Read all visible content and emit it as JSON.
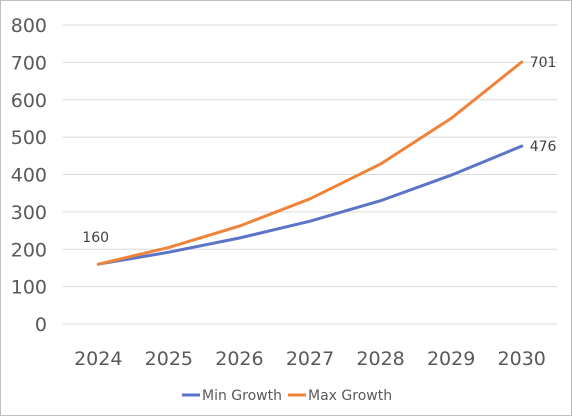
{
  "chart_data": {
    "type": "line",
    "title": "",
    "xlabel": "",
    "ylabel": "",
    "x": [
      "2024",
      "2025",
      "2026",
      "2027",
      "2028",
      "2029",
      "2030"
    ],
    "ylim": [
      0,
      800
    ],
    "yticks": [
      "0",
      "100",
      "200",
      "300",
      "400",
      "500",
      "600",
      "700",
      "800"
    ],
    "grid": true,
    "legend_position": "bottom",
    "series": [
      {
        "name": "Min Growth",
        "color": "#5b74c7",
        "values": [
          160,
          192,
          230,
          275,
          330,
          398,
          476
        ]
      },
      {
        "name": "Max Growth",
        "color": "#f0833a",
        "values": [
          160,
          205,
          262,
          335,
          428,
          550,
          701
        ]
      }
    ],
    "annotations": [
      {
        "series": 0,
        "index": 0,
        "text": "160"
      },
      {
        "series": 1,
        "index": 6,
        "text": "701"
      },
      {
        "series": 0,
        "index": 6,
        "text": "476"
      }
    ]
  }
}
